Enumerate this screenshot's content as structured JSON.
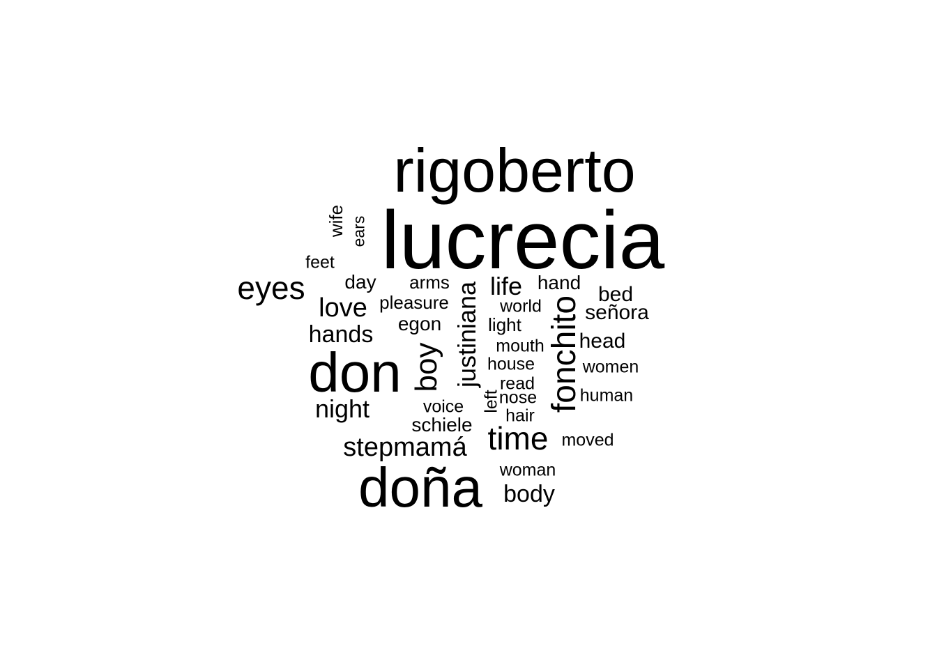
{
  "word_cloud": {
    "color": "#000000",
    "words": [
      {
        "text": "lucrecia",
        "vertical": false
      },
      {
        "text": "rigoberto",
        "vertical": false
      },
      {
        "text": "don",
        "vertical": false
      },
      {
        "text": "doña",
        "vertical": false
      },
      {
        "text": "fonchito",
        "vertical": true
      },
      {
        "text": "justiniana",
        "vertical": true
      },
      {
        "text": "boy",
        "vertical": true
      },
      {
        "text": "eyes",
        "vertical": false
      },
      {
        "text": "time",
        "vertical": false
      },
      {
        "text": "stepmamá",
        "vertical": false
      },
      {
        "text": "love",
        "vertical": false
      },
      {
        "text": "night",
        "vertical": false
      },
      {
        "text": "hands",
        "vertical": false
      },
      {
        "text": "life",
        "vertical": false
      },
      {
        "text": "body",
        "vertical": false
      },
      {
        "text": "head",
        "vertical": false
      },
      {
        "text": "señora",
        "vertical": false
      },
      {
        "text": "bed",
        "vertical": false
      },
      {
        "text": "hand",
        "vertical": false
      },
      {
        "text": "day",
        "vertical": false
      },
      {
        "text": "egon",
        "vertical": false
      },
      {
        "text": "schiele",
        "vertical": false
      },
      {
        "text": "arms",
        "vertical": false
      },
      {
        "text": "pleasure",
        "vertical": false
      },
      {
        "text": "light",
        "vertical": false
      },
      {
        "text": "house",
        "vertical": false
      },
      {
        "text": "mouth",
        "vertical": false
      },
      {
        "text": "world",
        "vertical": false
      },
      {
        "text": "women",
        "vertical": false
      },
      {
        "text": "human",
        "vertical": false
      },
      {
        "text": "moved",
        "vertical": false
      },
      {
        "text": "woman",
        "vertical": false
      },
      {
        "text": "hair",
        "vertical": false
      },
      {
        "text": "nose",
        "vertical": false
      },
      {
        "text": "read",
        "vertical": false
      },
      {
        "text": "voice",
        "vertical": false
      },
      {
        "text": "left",
        "vertical": true
      },
      {
        "text": "feet",
        "vertical": false
      },
      {
        "text": "wife",
        "vertical": true
      },
      {
        "text": "ears",
        "vertical": true
      }
    ]
  }
}
